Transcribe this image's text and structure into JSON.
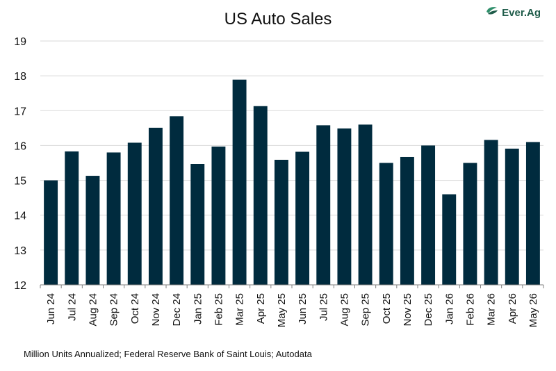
{
  "title": "US Auto Sales",
  "logo": {
    "text": "Ever.Ag",
    "icon": "ever-ag-leaf-icon",
    "color": "#1f5c4a"
  },
  "footnote": "Million Units Annualized; Federal Reserve Bank of Saint Louis; Autodata",
  "chart_data": {
    "type": "bar",
    "title": "US Auto Sales",
    "xlabel": "",
    "ylabel": "",
    "ylim": [
      12,
      19
    ],
    "yticks": [
      12,
      13,
      14,
      15,
      16,
      17,
      18,
      19
    ],
    "grid": true,
    "bar_color": "#002b3e",
    "categories": [
      "Jun 24",
      "Jul 24",
      "Aug 24",
      "Sep 24",
      "Oct 24",
      "Nov 24",
      "Dec 24",
      "Jan 25",
      "Feb 25",
      "Mar 25",
      "Apr 25",
      "May 25",
      "Jun 25",
      "Jul 25",
      "Aug 25",
      "Sep 25",
      "Oct 25",
      "Nov 25",
      "Dec 25",
      "Jan 26",
      "Feb 26",
      "Mar 26",
      "Apr 26",
      "May 26"
    ],
    "values": [
      15.0,
      15.83,
      15.13,
      15.8,
      16.08,
      16.51,
      16.84,
      15.47,
      15.97,
      17.89,
      17.13,
      15.59,
      15.82,
      16.58,
      16.49,
      16.6,
      15.5,
      15.67,
      16.0,
      14.6,
      15.5,
      16.16,
      15.91,
      16.1
    ]
  }
}
